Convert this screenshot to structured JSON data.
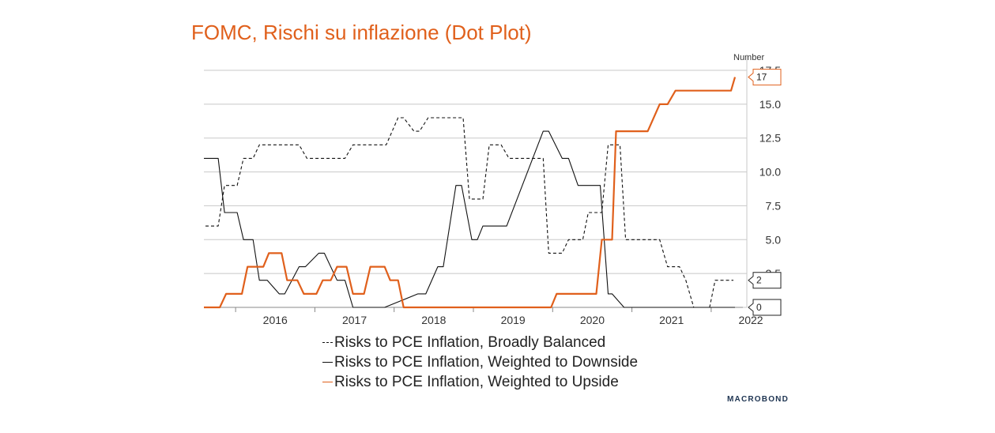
{
  "title": "FOMC, Rischi su inflazione (Dot Plot)",
  "brand": "MACROBOND",
  "colors": {
    "title": "#e0601c",
    "upside": "#e0601c",
    "downside": "#111111",
    "balanced": "#111111",
    "grid": "#c8c8c8"
  },
  "chart_data": {
    "type": "line",
    "y_unit_label": "Number",
    "ylim": [
      0,
      17.5
    ],
    "yticks": [
      "0.0",
      "2.5",
      "5.0",
      "7.5",
      "10.0",
      "12.5",
      "15.0",
      "17.5"
    ],
    "xlim": [
      2015.6,
      2022.4
    ],
    "x_tick_labels": [
      "2016",
      "2017",
      "2018",
      "2019",
      "2020",
      "2021",
      "2022"
    ],
    "grid": "horizontal",
    "legend_position": "bottom",
    "series": [
      {
        "name": "Risks to PCE Inflation, Broadly Balanced",
        "style": "dashed",
        "end_label": "2",
        "x": [
          2015.62,
          2015.78,
          2015.86,
          2016.02,
          2016.1,
          2016.22,
          2016.3,
          2016.4,
          2016.8,
          2016.9,
          2017.38,
          2017.48,
          2017.9,
          2018.05,
          2018.12,
          2018.25,
          2018.32,
          2018.43,
          2018.5,
          2018.87,
          2018.95,
          2019.12,
          2019.2,
          2019.35,
          2019.45,
          2019.88,
          2019.95,
          2020.12,
          2020.2,
          2020.38,
          2020.45,
          2020.62,
          2020.7,
          2020.85,
          2020.92,
          2021.35,
          2021.45,
          2021.6,
          2021.68,
          2021.78,
          2021.85,
          2021.98,
          2022.05,
          2022.28
        ],
        "y": [
          6,
          6,
          9,
          9,
          11,
          11,
          12,
          12,
          12,
          11,
          11,
          12,
          12,
          14,
          14,
          13,
          13,
          14,
          14,
          14,
          8,
          8,
          12,
          12,
          11,
          11,
          4,
          4,
          5,
          5,
          7,
          7,
          12,
          12,
          5,
          5,
          3,
          3,
          2,
          0,
          0,
          0,
          2,
          2
        ]
      },
      {
        "name": "Risks to PCE Inflation, Weighted to Downside",
        "style": "solid",
        "end_label": "0",
        "x": [
          2015.6,
          2015.78,
          2015.86,
          2016.02,
          2016.1,
          2016.22,
          2016.3,
          2016.4,
          2016.55,
          2016.62,
          2016.8,
          2016.88,
          2017.05,
          2017.12,
          2017.28,
          2017.38,
          2017.48,
          2017.58,
          2017.78,
          2017.88,
          2018.3,
          2018.4,
          2018.55,
          2018.62,
          2018.78,
          2018.85,
          2018.98,
          2019.05,
          2019.12,
          2019.2,
          2019.35,
          2019.42,
          2019.88,
          2019.95,
          2020.12,
          2020.2,
          2020.32,
          2020.38,
          2020.5,
          2020.6,
          2020.7,
          2020.75,
          2020.9,
          2020.97,
          2021.4,
          2022.3
        ],
        "y": [
          11,
          11,
          7,
          7,
          5,
          5,
          2,
          2,
          1,
          1,
          3,
          3,
          4,
          4,
          2,
          2,
          0,
          0,
          0,
          0,
          1,
          1,
          3,
          3,
          9,
          9,
          5,
          5,
          6,
          6,
          6,
          6,
          13,
          13,
          11,
          11,
          9,
          9,
          9,
          9,
          1,
          1,
          0,
          0,
          0,
          0
        ]
      },
      {
        "name": "Risks to PCE Inflation, Weighted to Upside",
        "style": "solid",
        "end_label": "17",
        "x": [
          2015.6,
          2015.8,
          2015.88,
          2016.08,
          2016.15,
          2016.35,
          2016.42,
          2016.58,
          2016.65,
          2016.78,
          2016.86,
          2017.02,
          2017.1,
          2017.2,
          2017.28,
          2017.4,
          2017.48,
          2017.62,
          2017.7,
          2017.88,
          2017.95,
          2018.05,
          2018.12,
          2018.25,
          2018.32,
          2018.42,
          2018.48,
          2018.52,
          2019.98,
          2020.05,
          2020.55,
          2020.62,
          2020.75,
          2020.8,
          2020.92,
          2021.2,
          2021.35,
          2021.45,
          2021.55,
          2021.75,
          2022.25,
          2022.3
        ],
        "y": [
          0,
          0,
          1,
          1,
          3,
          3,
          4,
          4,
          2,
          2,
          1,
          1,
          2,
          2,
          3,
          3,
          1,
          1,
          3,
          3,
          2,
          2,
          0,
          0,
          0,
          0,
          0,
          0,
          0,
          1,
          1,
          5,
          5,
          13,
          13,
          13,
          15,
          15,
          16,
          16,
          16,
          17
        ]
      }
    ]
  }
}
